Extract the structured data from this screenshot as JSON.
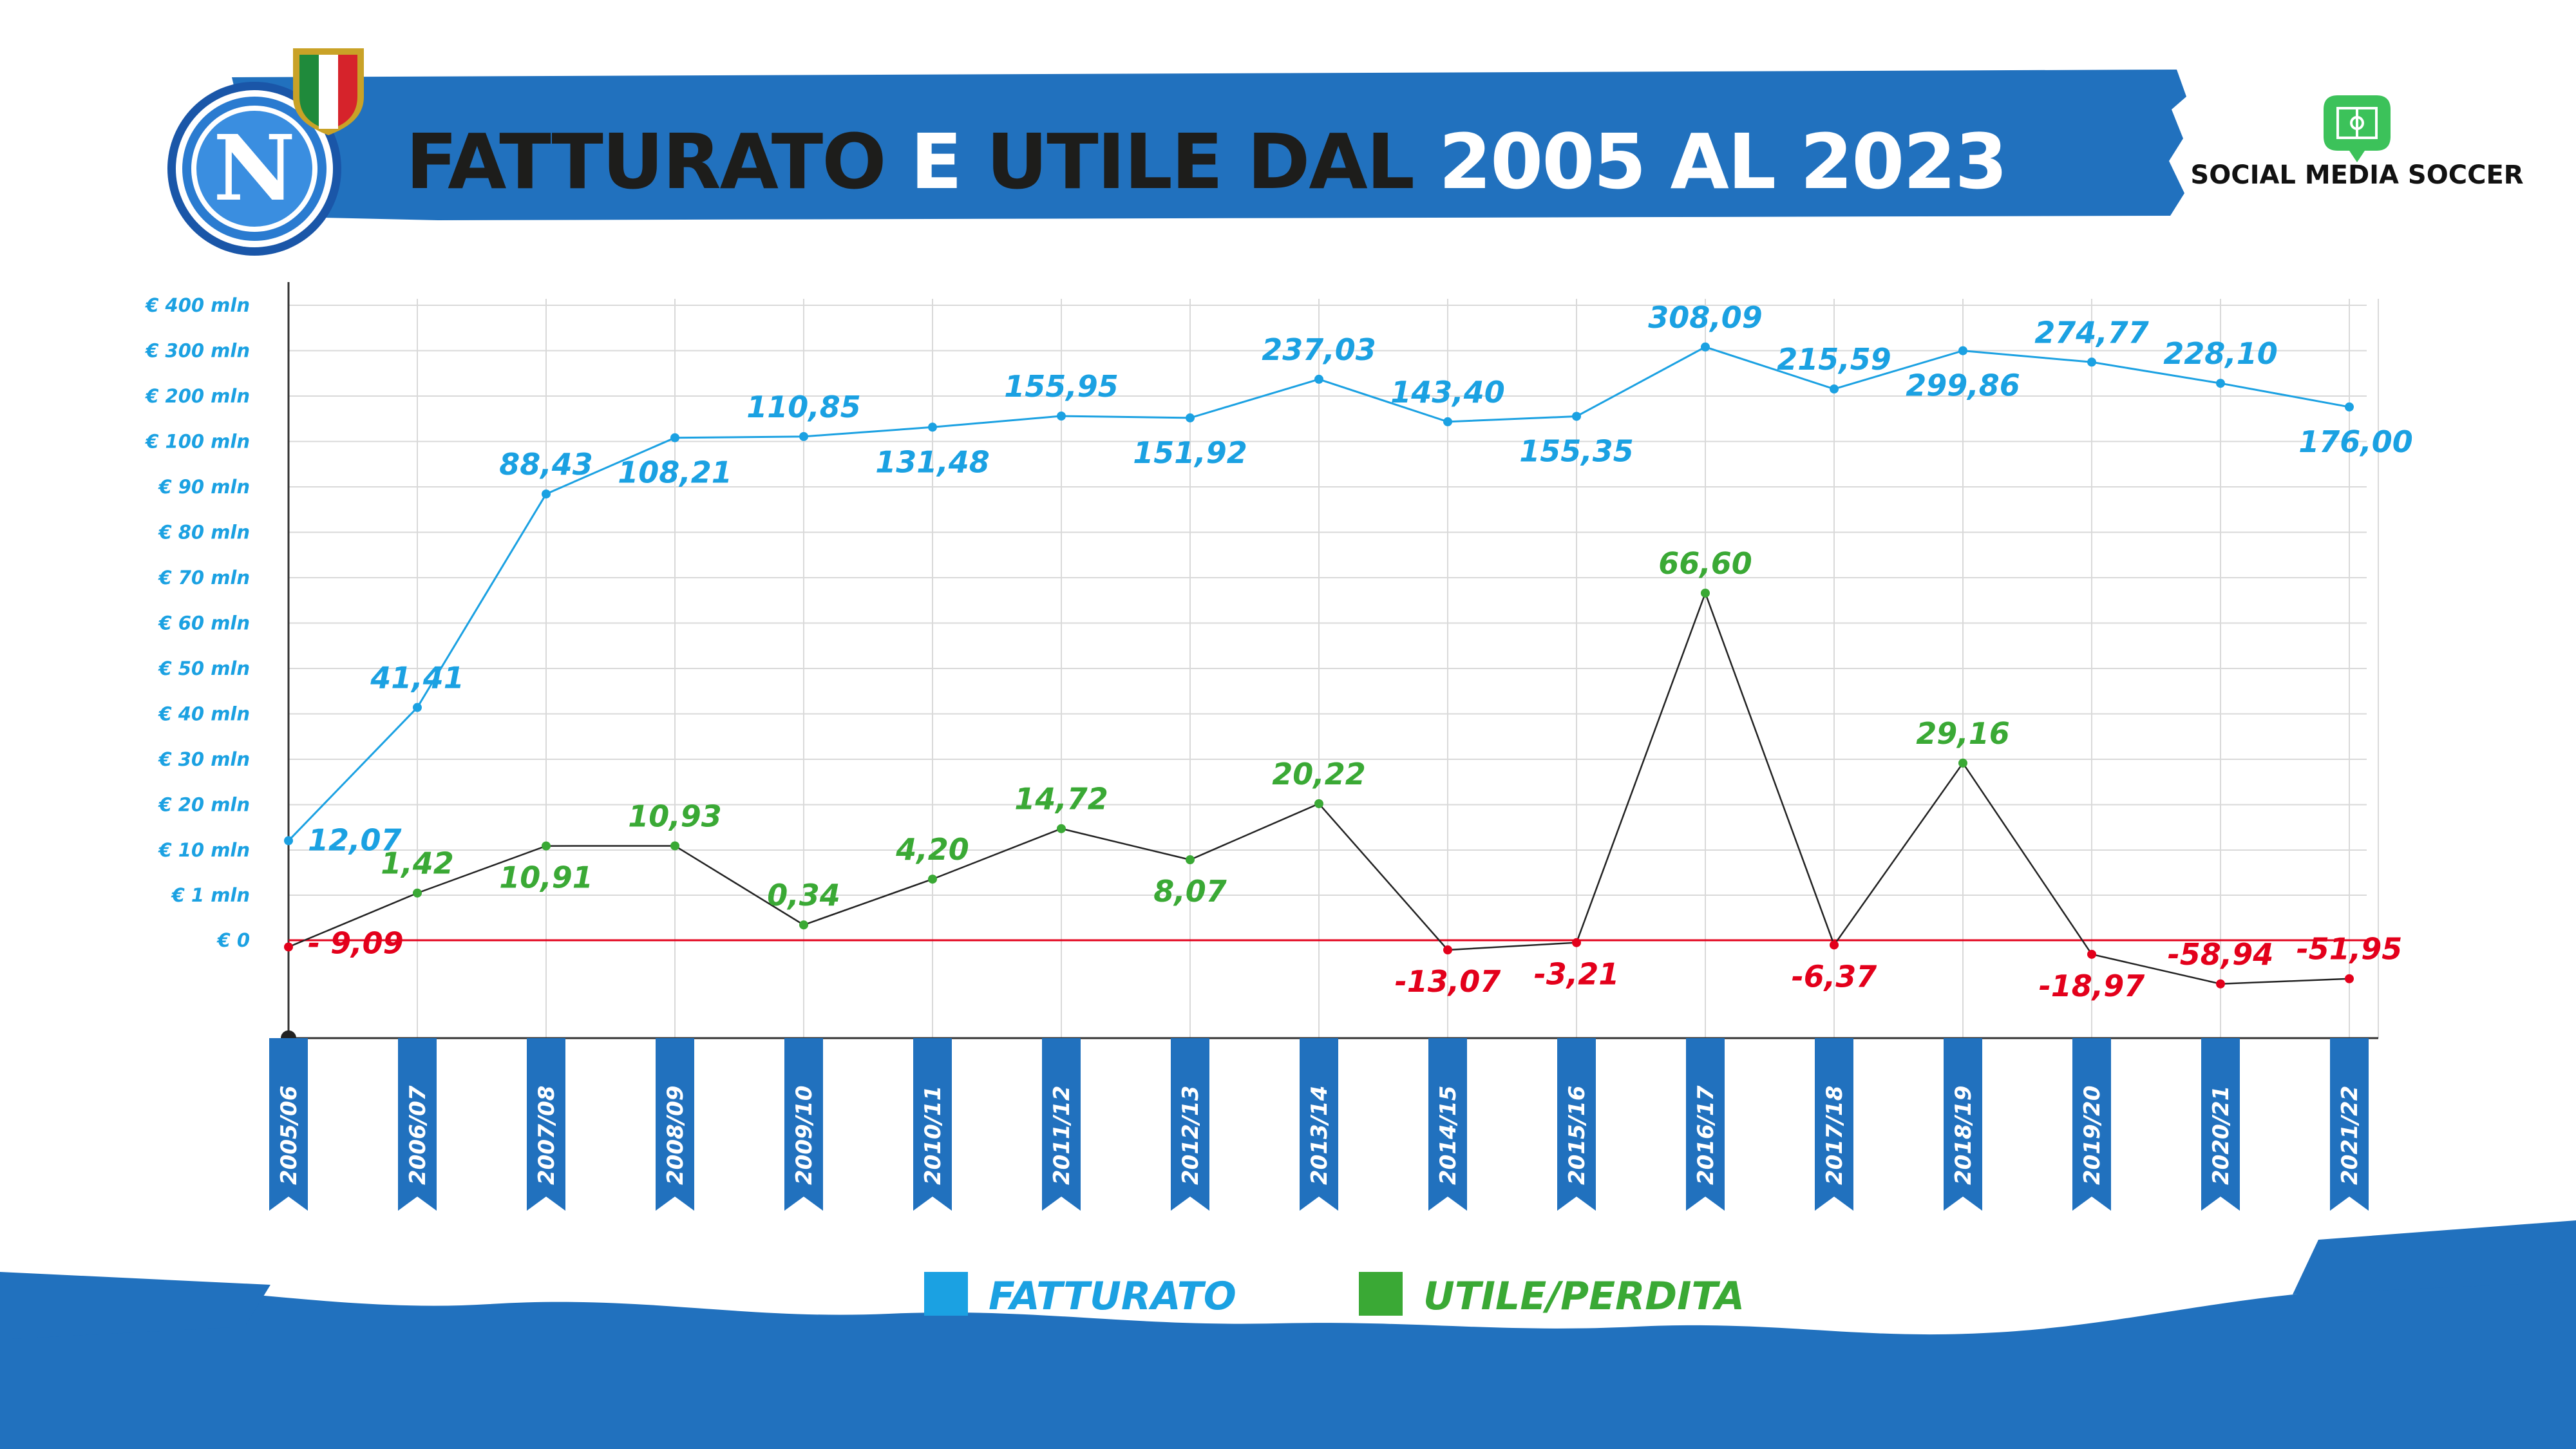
{
  "header": {
    "title_dark": "FATTURATO",
    "title_e": "E",
    "title_dark2": "UTILE DAL",
    "title_light": "2005 AL 2023",
    "brand": "SOCIAL MEDIA SOCCER",
    "logo_letter": "N"
  },
  "colors": {
    "banner": "#2171be",
    "fatturato": "#1ba1e2",
    "utile_positive": "#3aa935",
    "perdita": "#e3001b",
    "zero_line": "#e3001b",
    "utile_line": "#222222",
    "title_dark": "#1d1d1b",
    "title_light": "#ffffff"
  },
  "chart_data": {
    "type": "line",
    "categories": [
      "2005/06",
      "2006/07",
      "2007/08",
      "2008/09",
      "2009/10",
      "2010/11",
      "2011/12",
      "2012/13",
      "2013/14",
      "2014/15",
      "2015/16",
      "2016/17",
      "2017/18",
      "2018/19",
      "2019/20",
      "2020/21",
      "2021/22"
    ],
    "y_ticks": [
      "€ 0",
      "€ 1 mln",
      "€ 10 mln",
      "€ 20 mln",
      "€ 30 mln",
      "€ 40 mln",
      "€ 50 mln",
      "€ 60 mln",
      "€ 70 mln",
      "€ 80 mln",
      "€ 90 mln",
      "€ 100 mln",
      "€ 200 mln",
      "€ 300 mln",
      "€ 400 mln"
    ],
    "y_scale": "piecewise (non-linear): € 0, € 1 mln, € 10–100 mln in steps of 10, € 200–400 mln",
    "grid": true,
    "series": [
      {
        "name": "FATTURATO",
        "unit": "€ mln",
        "values": [
          12.07,
          41.41,
          88.43,
          108.21,
          110.85,
          131.48,
          155.95,
          151.92,
          237.03,
          143.4,
          155.35,
          308.09,
          215.59,
          299.86,
          274.77,
          228.1,
          176.0
        ],
        "labels": [
          "12,07",
          "41,41",
          "88,43",
          "108,21",
          "110,85",
          "131,48",
          "155,95",
          "151,92",
          "237,03",
          "143,40",
          "155,35",
          "308,09",
          "215,59",
          "299,86",
          "274,77",
          "228,10",
          "176,00"
        ]
      },
      {
        "name": "UTILE/PERDITA",
        "unit": "€ mln",
        "values": [
          -9.09,
          1.42,
          10.91,
          10.93,
          0.34,
          4.2,
          14.72,
          8.07,
          20.22,
          -13.07,
          -3.21,
          66.6,
          -6.37,
          29.16,
          -18.97,
          -58.94,
          -51.95
        ],
        "labels": [
          "- 9,09",
          "1,42",
          "10,91",
          "10,93",
          "0,34",
          "4,20",
          "14,72",
          "8,07",
          "20,22",
          "-13,07",
          "-3,21",
          "66,60",
          "-6,37",
          "29,16",
          "-18,97",
          "-58,94",
          "-51,95"
        ]
      }
    ],
    "legend": [
      {
        "label": "FATTURATO",
        "color": "#1ba1e2"
      },
      {
        "label": "UTILE/PERDITA",
        "color": "#3aa935"
      }
    ],
    "legend_placement": "bottom-center"
  }
}
